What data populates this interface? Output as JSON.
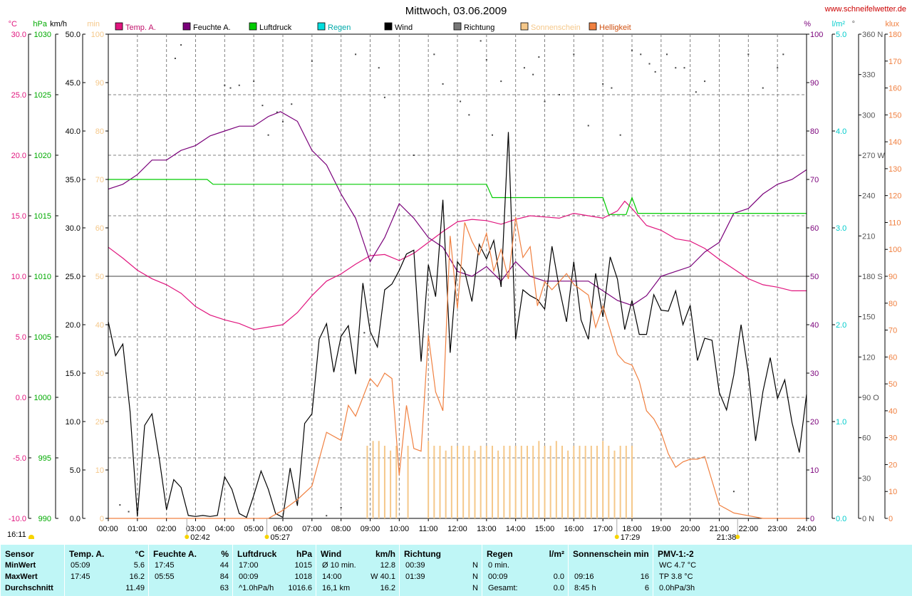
{
  "header": {
    "title": "Mittwoch, 03.06.2009",
    "website": "www.schneifelwetter.de",
    "legend": [
      {
        "label": "Temp. A.",
        "color": "#e0157e"
      },
      {
        "label": "Feuchte A.",
        "color": "#7a007a"
      },
      {
        "label": "Luftdruck",
        "color": "#00cc00"
      },
      {
        "label": "Regen",
        "color": "#00dddd"
      },
      {
        "label": "Wind",
        "color": "#000000"
      },
      {
        "label": "Richtung",
        "color": "#777777"
      },
      {
        "label": "Sonnenschein",
        "color": "#f5c88a"
      },
      {
        "label": "Helligkeit",
        "color": "#f08040"
      }
    ],
    "left_units": [
      "°C",
      "hPa",
      "km/h",
      "min"
    ],
    "right_units": [
      "%",
      "l/m²",
      "°",
      "klux"
    ]
  },
  "chart_data": {
    "type": "line",
    "x_range": [
      "00:00",
      "24:00"
    ],
    "x_ticks": [
      "00:00",
      "01:00",
      "02:00",
      "03:00",
      "04:00",
      "05:00",
      "06:00",
      "07:00",
      "08:00",
      "09:00",
      "10:00",
      "11:00",
      "12:00",
      "13:00",
      "14:00",
      "15:00",
      "16:00",
      "17:00",
      "18:00",
      "19:00",
      "20:00",
      "21:00",
      "22:00",
      "23:00",
      "24:00"
    ],
    "axes": {
      "temp": {
        "label": "°C",
        "range": [
          -10,
          30
        ],
        "ticks": [
          "30.0",
          "25.0",
          "20.0",
          "15.0",
          "10.0",
          "5.0",
          "0.0",
          "-5.0",
          "-10.0"
        ],
        "color": "#e0157e"
      },
      "pressure": {
        "label": "hPa",
        "range": [
          990,
          1030
        ],
        "ticks": [
          "1030",
          "1025",
          "1020",
          "1015",
          "1010",
          "1005",
          "1000",
          "995",
          "990"
        ],
        "color": "#00aa00"
      },
      "wind": {
        "label": "km/h",
        "range": [
          0,
          50
        ],
        "ticks": [
          "50.0",
          "45.0",
          "40.0",
          "35.0",
          "30.0",
          "25.0",
          "20.0",
          "15.0",
          "10.0",
          "5.0",
          "0.0"
        ],
        "color": "#000000"
      },
      "sunshine": {
        "label": "min",
        "range": [
          0,
          100
        ],
        "ticks": [
          "100",
          "90",
          "80",
          "70",
          "60",
          "50",
          "40",
          "30",
          "20",
          "10",
          "0"
        ],
        "color": "#f5c88a"
      },
      "humidity": {
        "label": "%",
        "range": [
          0,
          100
        ],
        "ticks": [
          "100",
          "90",
          "80",
          "70",
          "60",
          "50",
          "40",
          "30",
          "20",
          "10",
          "0"
        ],
        "color": "#7a007a"
      },
      "rain": {
        "label": "l/m²",
        "range": [
          0,
          5
        ],
        "ticks": [
          "5.0",
          "4.0",
          "3.0",
          "2.0",
          "1.0",
          "0.0"
        ],
        "color": "#00cccc"
      },
      "direction": {
        "label": "°",
        "range": [
          0,
          360
        ],
        "ticks": [
          "360 N",
          "330",
          "300",
          "270 W",
          "240",
          "210",
          "180 S",
          "150",
          "120",
          "90 O",
          "60",
          "30",
          "0 N"
        ],
        "color": "#555555"
      },
      "brightness": {
        "label": "klux",
        "range": [
          0,
          180
        ],
        "ticks": [
          "180",
          "170",
          "160",
          "150",
          "140",
          "130",
          "120",
          "110",
          "100",
          "90",
          "80",
          "70",
          "60",
          "50",
          "40",
          "30",
          "20",
          "10",
          "0"
        ],
        "color": "#f08040"
      }
    },
    "series": [
      {
        "name": "Temp. A.",
        "axis": "temp",
        "color": "#e0157e",
        "x": [
          0,
          0.5,
          1,
          1.5,
          2,
          2.5,
          3,
          3.5,
          4,
          4.5,
          5,
          5.5,
          6,
          6.5,
          7,
          7.5,
          8,
          8.5,
          9,
          9.5,
          10,
          10.5,
          11,
          11.5,
          12,
          12.5,
          13,
          13.5,
          14,
          14.5,
          15,
          15.5,
          16,
          16.5,
          17,
          17.5,
          17.75,
          18,
          18.5,
          19,
          19.5,
          20,
          20.5,
          21,
          21.5,
          22,
          22.5,
          23,
          23.5,
          24
        ],
        "y": [
          12.4,
          11.5,
          10.5,
          9.8,
          9.3,
          8.6,
          7.5,
          6.8,
          6.4,
          6.1,
          5.6,
          5.8,
          6.0,
          7.0,
          8.4,
          9.6,
          10.2,
          11.0,
          11.7,
          11.8,
          11.3,
          11.9,
          12.8,
          13.7,
          14.5,
          14.7,
          14.6,
          14.3,
          14.7,
          15.0,
          14.9,
          14.8,
          15.2,
          15.0,
          14.8,
          15.4,
          16.2,
          15.6,
          14.2,
          13.8,
          13.1,
          12.9,
          12.3,
          11.4,
          10.6,
          9.8,
          9.3,
          9.1,
          8.8,
          8.8
        ]
      },
      {
        "name": "Feuchte A.",
        "axis": "humidity",
        "color": "#7a007a",
        "x": [
          0,
          0.5,
          1,
          1.5,
          2,
          2.5,
          3,
          3.5,
          4,
          4.5,
          5,
          5.5,
          5.92,
          6.5,
          7,
          7.5,
          8,
          8.5,
          9,
          9.5,
          10,
          10.5,
          11,
          11.5,
          12,
          12.5,
          13,
          13.5,
          14,
          14.5,
          15,
          15.5,
          16,
          16.5,
          17,
          17.5,
          18,
          18.5,
          19,
          19.5,
          20,
          20.5,
          21,
          21.5,
          22,
          22.5,
          23,
          23.5,
          24
        ],
        "y": [
          68,
          69,
          71,
          74,
          74,
          76,
          77,
          79,
          80,
          81,
          81,
          83,
          84,
          82,
          76,
          73,
          67,
          62,
          53,
          58,
          65,
          62,
          58,
          56,
          51,
          50,
          52,
          49,
          53,
          50,
          49,
          49,
          49,
          49,
          47,
          45,
          44,
          46,
          50,
          51,
          52,
          55,
          57,
          63,
          64,
          67,
          69,
          70,
          72
        ]
      },
      {
        "name": "Luftdruck",
        "axis": "pressure",
        "color": "#00cc00",
        "x": [
          0,
          3.4,
          3.6,
          13,
          13.2,
          17,
          17.2,
          17.8,
          18,
          18.2,
          24
        ],
        "y": [
          1018,
          1018,
          1017.6,
          1017.6,
          1016.5,
          1016.5,
          1015.1,
          1015.1,
          1016.5,
          1015.2,
          1015.2
        ]
      },
      {
        "name": "Wind",
        "axis": "wind",
        "color": "#000000",
        "x": [
          0,
          0.25,
          0.5,
          0.75,
          1,
          1.25,
          1.5,
          1.75,
          2,
          2.25,
          2.5,
          2.75,
          3,
          3.25,
          3.5,
          3.75,
          4,
          4.25,
          4.5,
          4.75,
          5,
          5.25,
          5.5,
          5.75,
          6,
          6.25,
          6.5,
          6.75,
          7,
          7.25,
          7.5,
          7.75,
          8,
          8.25,
          8.5,
          8.75,
          9,
          9.25,
          9.5,
          9.75,
          10,
          10.25,
          10.5,
          10.75,
          11,
          11.25,
          11.5,
          11.75,
          12,
          12.25,
          12.5,
          12.75,
          13,
          13.25,
          13.5,
          13.75,
          14,
          14.25,
          14.5,
          14.75,
          15,
          15.25,
          15.5,
          15.75,
          16,
          16.25,
          16.5,
          16.75,
          17,
          17.25,
          17.5,
          17.75,
          18,
          18.25,
          18.5,
          18.75,
          19,
          19.25,
          19.5,
          19.75,
          20,
          20.25,
          20.5,
          20.75,
          21,
          21.25,
          21.5,
          21.75,
          22,
          22.25,
          22.5,
          22.75,
          23,
          23.25,
          23.5,
          23.75,
          24
        ],
        "y": [
          20.3,
          16.8,
          18.0,
          11.0,
          0.2,
          9.6,
          10.8,
          6.2,
          0.9,
          4.0,
          3.2,
          0.3,
          0.2,
          0.3,
          0.2,
          0.3,
          4.3,
          3.0,
          0.5,
          0.1,
          2.4,
          4.9,
          3.0,
          0.5,
          0.1,
          5.2,
          1.3,
          9.8,
          10.8,
          18.5,
          20.1,
          15.1,
          18.8,
          19.9,
          14.9,
          24.3,
          19.3,
          17.7,
          23.6,
          24.2,
          25.6,
          27.3,
          27.7,
          16.2,
          26.2,
          22.9,
          32.9,
          17.1,
          26.5,
          25.5,
          22.4,
          28.3,
          26.8,
          28.7,
          23.9,
          39.9,
          18.5,
          23.6,
          23.0,
          22.6,
          21.6,
          28.1,
          23.8,
          20.3,
          26.5,
          20.5,
          18.5,
          25.3,
          20.8,
          27.0,
          24.7,
          19.5,
          22.5,
          19.0,
          19.0,
          23.1,
          21.5,
          21.4,
          23.5,
          20.0,
          22.0,
          16.3,
          18.6,
          18.4,
          13.0,
          11.2,
          14.8,
          20.0,
          15.0,
          8.0,
          13.1,
          16.6,
          12.4,
          14.3,
          9.9,
          6.8,
          12.8
        ]
      },
      {
        "name": "Helligkeit",
        "axis": "brightness",
        "color": "#f08040",
        "x": [
          0,
          5.5,
          6,
          6.5,
          7,
          7.25,
          7.5,
          8,
          8.25,
          8.5,
          9,
          9.25,
          9.5,
          9.75,
          10,
          10.25,
          10.5,
          10.75,
          11,
          11.25,
          11.5,
          11.75,
          12,
          12.25,
          12.5,
          12.75,
          13,
          13.25,
          13.5,
          13.75,
          14,
          14.25,
          14.5,
          14.75,
          15,
          15.25,
          15.5,
          15.75,
          16,
          16.25,
          16.5,
          16.75,
          17,
          17.25,
          17.5,
          17.75,
          18,
          18.25,
          18.5,
          18.75,
          19,
          19.25,
          19.5,
          19.75,
          20,
          20.25,
          20.5,
          21,
          21.5,
          22,
          22.5,
          24
        ],
        "y": [
          0,
          0,
          3,
          7,
          12,
          22,
          32,
          29,
          42,
          38,
          52,
          49,
          54,
          52,
          16,
          42,
          26,
          25,
          68,
          47,
          40,
          105,
          78,
          110,
          103,
          98,
          106,
          92,
          100,
          89,
          112,
          97,
          101,
          79,
          88,
          85,
          88,
          91,
          87,
          85,
          83,
          71,
          79,
          70,
          61,
          58,
          57,
          51,
          40,
          37,
          32,
          24,
          19,
          21,
          22,
          22,
          23,
          5,
          2,
          1,
          0,
          0
        ]
      },
      {
        "name": "Richtung",
        "axis": "direction",
        "color": "#444444",
        "style": "dots",
        "x": [
          0.4,
          0.7,
          1.0,
          2.3,
          2.5,
          4.0,
          4.2,
          4.5,
          5.0,
          5.3,
          5.5,
          5.8,
          6.0,
          6.3,
          7.0,
          7.5,
          8.0,
          8.5,
          8.8,
          9.3,
          9.5,
          10.5,
          11.2,
          11.5,
          12.1,
          12.4,
          12.8,
          13.0,
          13.2,
          13.5,
          14.3,
          14.6,
          14.8,
          15.0,
          15.5,
          16.0,
          16.5,
          17.0,
          17.3,
          17.6,
          18.0,
          18.3,
          18.6,
          18.8,
          19.2,
          19.5,
          19.8,
          20.2,
          20.5,
          21.5,
          22.0,
          22.5,
          23.0,
          23.2
        ],
        "y": [
          10,
          5,
          5,
          342,
          352,
          322,
          320,
          322,
          325,
          307,
          285,
          302,
          295,
          308,
          340,
          2,
          8,
          345,
          138,
          335,
          313,
          270,
          345,
          323,
          310,
          300,
          355,
          341,
          285,
          325,
          335,
          330,
          343,
          310,
          315,
          345,
          292,
          323,
          320,
          285,
          348,
          345,
          338,
          332,
          345,
          335,
          335,
          317,
          325,
          20,
          345,
          320,
          335,
          345
        ]
      },
      {
        "name": "Sonnenschein",
        "axis": "sunshine",
        "color": "#f5c88a",
        "style": "bars",
        "x": [
          8.9,
          9.1,
          9.3,
          9.5,
          9.7,
          9.9,
          10.3,
          11.0,
          11.2,
          11.4,
          11.6,
          11.8,
          12.0,
          12.2,
          12.4,
          12.6,
          12.8,
          13.0,
          13.2,
          13.4,
          13.6,
          13.8,
          14.0,
          14.2,
          14.4,
          14.6,
          14.8,
          15.0,
          15.2,
          15.4,
          15.6,
          15.8,
          16.0,
          16.2,
          16.4,
          16.6,
          16.8,
          17.0,
          17.2,
          17.4,
          17.6,
          17.8,
          18.0
        ],
        "y": [
          15,
          16,
          16,
          15,
          14,
          15,
          15,
          16,
          15,
          15,
          14,
          15,
          15,
          15,
          15,
          14,
          15,
          15,
          15,
          14,
          15,
          15,
          15,
          15,
          15,
          15,
          16,
          15,
          15,
          16,
          15,
          14,
          15,
          15,
          15,
          15,
          15,
          16,
          15,
          14,
          15,
          15,
          15
        ]
      }
    ],
    "markers": {
      "left_time": "16:11",
      "moonrise_time": "02:42",
      "sunrise_time": "05:27",
      "sunset_time": "17:29",
      "moonset_time": "21:38"
    }
  },
  "stats": {
    "columns": [
      {
        "header": "Sensor",
        "rows": [
          "MinWert",
          "MaxWert",
          "Durchschnitt"
        ]
      },
      {
        "header": "Temp. A.",
        "unit": "°C",
        "rows": [
          [
            "05:09",
            "5.6"
          ],
          [
            "17:45",
            "16.2"
          ],
          [
            "",
            "11.49"
          ]
        ]
      },
      {
        "header": "Feuchte A.",
        "unit": "%",
        "rows": [
          [
            "17:45",
            "44"
          ],
          [
            "05:55",
            "84"
          ],
          [
            "",
            "63"
          ]
        ]
      },
      {
        "header": "Luftdruck",
        "unit": "hPa",
        "rows": [
          [
            "17:00",
            "1015"
          ],
          [
            "00:09",
            "1018"
          ],
          [
            "^1.0hPa/h",
            "1016.6"
          ]
        ]
      },
      {
        "header": "Wind",
        "unit": "km/h",
        "rows": [
          [
            "Ø 10 min.",
            "12.8"
          ],
          [
            "14:00",
            "W 40.1"
          ],
          [
            "16,1 km",
            "16.2"
          ]
        ]
      },
      {
        "header": "Richtung",
        "unit": "",
        "rows": [
          [
            "00:39",
            "N"
          ],
          [
            "01:39",
            "N"
          ],
          [
            "",
            "N"
          ]
        ]
      },
      {
        "header": "Regen",
        "unit": "l/m²",
        "rows": [
          [
            "0 min.",
            ""
          ],
          [
            "00:09",
            "0.0"
          ],
          [
            "Gesamt:",
            "0.0"
          ]
        ]
      },
      {
        "header": "Sonnenschein min",
        "unit": "",
        "rows": [
          [
            "",
            ""
          ],
          [
            "09:16",
            "16"
          ],
          [
            "8:45 h",
            "6"
          ]
        ]
      },
      {
        "header": "PMV-1:-2",
        "unit": "",
        "rows": [
          [
            "WC 4.7 °C",
            ""
          ],
          [
            "TP 3.8 °C",
            ""
          ],
          [
            "0.0hPa/3h",
            ""
          ]
        ]
      }
    ]
  }
}
